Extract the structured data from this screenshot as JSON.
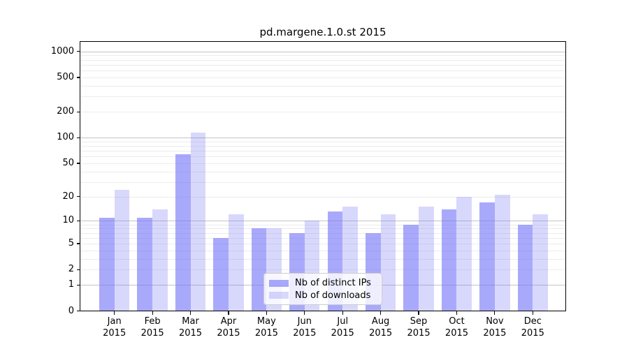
{
  "title": "pd.margene.1.0.st 2015",
  "colors": {
    "bar_base": "#7070f8",
    "bar_dark": "rgba(112,112,248,0.6)",
    "bar_light": "rgba(112,112,248,0.27)",
    "major_grid": "#c4c4c4",
    "minor_grid": "#ececec",
    "axis": "#000000",
    "legend_border": "#cccccc"
  },
  "legend": {
    "items": [
      {
        "label": "Nb of distinct IPs",
        "swatch": "bar_dark"
      },
      {
        "label": "Nb of downloads",
        "swatch": "bar_light"
      }
    ]
  },
  "axes": {
    "x_months": [
      "Jan",
      "Feb",
      "Mar",
      "Apr",
      "May",
      "Jun",
      "Jul",
      "Aug",
      "Sep",
      "Oct",
      "Nov",
      "Dec"
    ],
    "x_year": "2015",
    "y_tick_labels": [
      "0",
      "1",
      "2",
      "5",
      "10",
      "20",
      "50",
      "100",
      "200",
      "500",
      "1000"
    ]
  },
  "chart_data": {
    "type": "bar",
    "title": "pd.margene.1.0.st 2015",
    "y_scale": "log1p",
    "categories": [
      "Jan 2015",
      "Feb 2015",
      "Mar 2015",
      "Apr 2015",
      "May 2015",
      "Jun 2015",
      "Jul 2015",
      "Aug 2015",
      "Sep 2015",
      "Oct 2015",
      "Nov 2015",
      "Dec 2015"
    ],
    "series": [
      {
        "name": "Nb of distinct IPs",
        "values": [
          11,
          11,
          64,
          6,
          8,
          7,
          13,
          7,
          9,
          14,
          17,
          9
        ]
      },
      {
        "name": "Nb of downloads",
        "values": [
          24,
          14,
          114,
          12,
          8,
          10,
          15,
          12,
          15,
          20,
          21,
          12
        ]
      }
    ],
    "y_ticks": [
      0,
      1,
      2,
      5,
      10,
      20,
      50,
      100,
      200,
      500,
      1000
    ],
    "ylim": [
      0,
      1280
    ],
    "xlabel": "",
    "ylabel": "",
    "grid": true,
    "legend_position": "lower center"
  }
}
